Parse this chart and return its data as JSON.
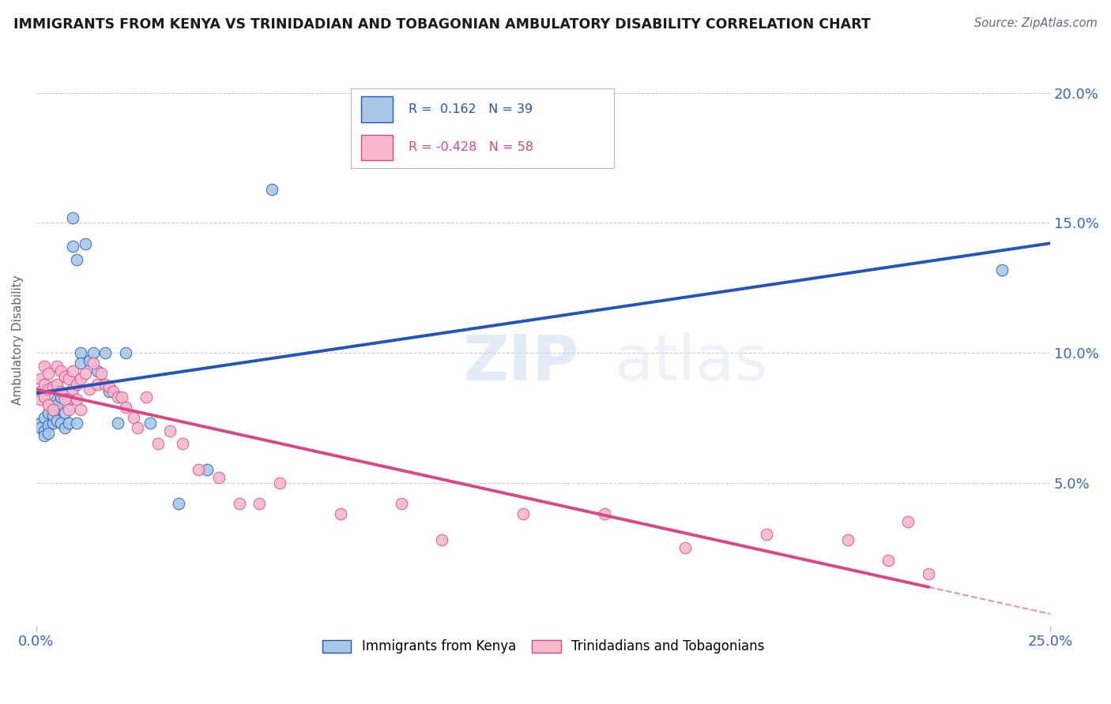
{
  "title": "IMMIGRANTS FROM KENYA VS TRINIDADIAN AND TOBAGONIAN AMBULATORY DISABILITY CORRELATION CHART",
  "source": "Source: ZipAtlas.com",
  "ylabel": "Ambulatory Disability",
  "ytick_vals": [
    0.2,
    0.15,
    0.1,
    0.05
  ],
  "ytick_labels": [
    "20.0%",
    "15.0%",
    "10.0%",
    "5.0%"
  ],
  "xlim": [
    0.0,
    0.25
  ],
  "ylim": [
    -0.005,
    0.215
  ],
  "watermark_zip": "ZIP",
  "watermark_atlas": "atlas",
  "color_kenya": "#a8c8e8",
  "color_tt": "#f8b8cc",
  "color_kenya_line": "#2255bb",
  "color_tt_line": "#dd4488",
  "color_tt_line_edge": "#dd4488",
  "kenya_scatter_x": [
    0.001,
    0.001,
    0.002,
    0.002,
    0.002,
    0.003,
    0.003,
    0.003,
    0.004,
    0.004,
    0.004,
    0.005,
    0.005,
    0.005,
    0.006,
    0.006,
    0.007,
    0.007,
    0.008,
    0.008,
    0.009,
    0.009,
    0.01,
    0.01,
    0.011,
    0.011,
    0.012,
    0.013,
    0.014,
    0.015,
    0.017,
    0.018,
    0.02,
    0.022,
    0.028,
    0.035,
    0.042,
    0.058,
    0.238
  ],
  "kenya_scatter_y": [
    0.073,
    0.071,
    0.075,
    0.07,
    0.068,
    0.077,
    0.072,
    0.069,
    0.079,
    0.073,
    0.076,
    0.082,
    0.074,
    0.08,
    0.073,
    0.083,
    0.077,
    0.071,
    0.082,
    0.073,
    0.152,
    0.141,
    0.136,
    0.073,
    0.1,
    0.096,
    0.142,
    0.097,
    0.1,
    0.093,
    0.1,
    0.085,
    0.073,
    0.1,
    0.073,
    0.042,
    0.055,
    0.163,
    0.132
  ],
  "tt_scatter_x": [
    0.001,
    0.001,
    0.001,
    0.002,
    0.002,
    0.002,
    0.003,
    0.003,
    0.003,
    0.004,
    0.004,
    0.005,
    0.005,
    0.006,
    0.006,
    0.007,
    0.007,
    0.008,
    0.008,
    0.009,
    0.009,
    0.01,
    0.01,
    0.011,
    0.011,
    0.012,
    0.013,
    0.014,
    0.015,
    0.016,
    0.017,
    0.018,
    0.019,
    0.02,
    0.021,
    0.022,
    0.024,
    0.025,
    0.027,
    0.03,
    0.033,
    0.036,
    0.04,
    0.045,
    0.05,
    0.055,
    0.06,
    0.075,
    0.09,
    0.1,
    0.12,
    0.14,
    0.16,
    0.18,
    0.2,
    0.21,
    0.215,
    0.22
  ],
  "tt_scatter_y": [
    0.09,
    0.085,
    0.082,
    0.095,
    0.088,
    0.083,
    0.092,
    0.086,
    0.08,
    0.087,
    0.078,
    0.095,
    0.088,
    0.093,
    0.085,
    0.091,
    0.082,
    0.09,
    0.078,
    0.093,
    0.086,
    0.088,
    0.082,
    0.09,
    0.078,
    0.092,
    0.086,
    0.096,
    0.088,
    0.092,
    0.088,
    0.087,
    0.085,
    0.083,
    0.083,
    0.079,
    0.075,
    0.071,
    0.083,
    0.065,
    0.07,
    0.065,
    0.055,
    0.052,
    0.042,
    0.042,
    0.05,
    0.038,
    0.042,
    0.028,
    0.038,
    0.038,
    0.025,
    0.03,
    0.028,
    0.02,
    0.035,
    0.015
  ]
}
